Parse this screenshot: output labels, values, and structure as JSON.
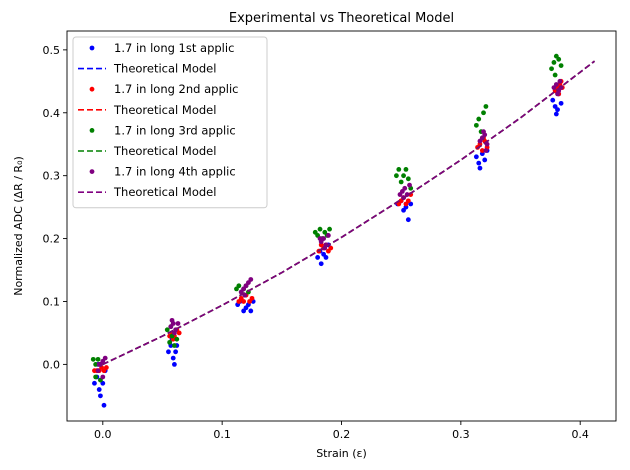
{
  "chart_data": {
    "type": "scatter",
    "title": "Experimental vs Theoretical Model",
    "xlabel": "Strain (ε)",
    "ylabel": "Normalized ADC (ΔR / R₀)",
    "xlim": [
      -0.03,
      0.43
    ],
    "ylim": [
      -0.09,
      0.53
    ],
    "xticks": [
      {
        "value": 0.0,
        "label": "0.0"
      },
      {
        "value": 0.1,
        "label": "0.1"
      },
      {
        "value": 0.2,
        "label": "0.2"
      },
      {
        "value": 0.3,
        "label": "0.3"
      },
      {
        "value": 0.4,
        "label": "0.4"
      }
    ],
    "yticks": [
      {
        "value": 0.0,
        "label": "0.0"
      },
      {
        "value": 0.1,
        "label": "0.1"
      },
      {
        "value": 0.2,
        "label": "0.2"
      },
      {
        "value": 0.3,
        "label": "0.3"
      },
      {
        "value": 0.4,
        "label": "0.4"
      },
      {
        "value": 0.5,
        "label": "0.5"
      }
    ],
    "grid": false,
    "legend_position": "top-left",
    "theory_curve": {
      "x": [
        0.0,
        0.05,
        0.1,
        0.15,
        0.2,
        0.25,
        0.3,
        0.35,
        0.412
      ],
      "y": [
        0.0,
        0.045,
        0.094,
        0.146,
        0.202,
        0.262,
        0.325,
        0.392,
        0.482
      ]
    },
    "series": [
      {
        "name": "1.7 in long 1st applic",
        "color": "#0000ff",
        "points": [
          [
            -0.007,
            -0.03
          ],
          [
            -0.005,
            -0.02
          ],
          [
            -0.003,
            -0.04
          ],
          [
            -0.002,
            -0.05
          ],
          [
            0.0,
            -0.03
          ],
          [
            0.001,
            -0.065
          ],
          [
            0.002,
            -0.01
          ],
          [
            -0.004,
            0.0
          ],
          [
            0.055,
            0.02
          ],
          [
            0.057,
            0.03
          ],
          [
            0.059,
            0.01
          ],
          [
            0.06,
            0.0
          ],
          [
            0.061,
            0.02
          ],
          [
            0.058,
            0.04
          ],
          [
            0.062,
            0.03
          ],
          [
            0.113,
            0.095
          ],
          [
            0.115,
            0.1
          ],
          [
            0.118,
            0.085
          ],
          [
            0.12,
            0.09
          ],
          [
            0.122,
            0.095
          ],
          [
            0.124,
            0.085
          ],
          [
            0.126,
            0.1
          ],
          [
            0.18,
            0.17
          ],
          [
            0.182,
            0.18
          ],
          [
            0.183,
            0.16
          ],
          [
            0.185,
            0.175
          ],
          [
            0.187,
            0.17
          ],
          [
            0.189,
            0.19
          ],
          [
            0.247,
            0.255
          ],
          [
            0.25,
            0.26
          ],
          [
            0.252,
            0.245
          ],
          [
            0.254,
            0.25
          ],
          [
            0.256,
            0.23
          ],
          [
            0.258,
            0.255
          ],
          [
            0.313,
            0.33
          ],
          [
            0.315,
            0.32
          ],
          [
            0.316,
            0.312
          ],
          [
            0.318,
            0.335
          ],
          [
            0.32,
            0.325
          ],
          [
            0.322,
            0.34
          ],
          [
            0.377,
            0.42
          ],
          [
            0.379,
            0.41
          ],
          [
            0.38,
            0.398
          ],
          [
            0.382,
            0.43
          ],
          [
            0.384,
            0.415
          ],
          [
            0.381,
            0.405
          ]
        ]
      },
      {
        "name": "1.7 in long 2nd applic",
        "color": "#ff0000",
        "points": [
          [
            -0.007,
            -0.01
          ],
          [
            -0.005,
            -0.01
          ],
          [
            -0.003,
            -0.01
          ],
          [
            -0.001,
            -0.005
          ],
          [
            0.001,
            -0.01
          ],
          [
            0.003,
            -0.005
          ],
          [
            0.056,
            0.045
          ],
          [
            0.058,
            0.05
          ],
          [
            0.06,
            0.045
          ],
          [
            0.062,
            0.055
          ],
          [
            0.064,
            0.05
          ],
          [
            0.059,
            0.04
          ],
          [
            0.114,
            0.1
          ],
          [
            0.116,
            0.105
          ],
          [
            0.118,
            0.1
          ],
          [
            0.12,
            0.11
          ],
          [
            0.123,
            0.1
          ],
          [
            0.125,
            0.105
          ],
          [
            0.181,
            0.18
          ],
          [
            0.183,
            0.19
          ],
          [
            0.185,
            0.185
          ],
          [
            0.187,
            0.19
          ],
          [
            0.189,
            0.18
          ],
          [
            0.191,
            0.185
          ],
          [
            0.248,
            0.255
          ],
          [
            0.25,
            0.26
          ],
          [
            0.252,
            0.265
          ],
          [
            0.254,
            0.255
          ],
          [
            0.256,
            0.26
          ],
          [
            0.258,
            0.27
          ],
          [
            0.314,
            0.345
          ],
          [
            0.316,
            0.35
          ],
          [
            0.318,
            0.34
          ],
          [
            0.32,
            0.355
          ],
          [
            0.322,
            0.345
          ],
          [
            0.319,
            0.36
          ],
          [
            0.379,
            0.435
          ],
          [
            0.381,
            0.44
          ],
          [
            0.383,
            0.445
          ],
          [
            0.385,
            0.44
          ],
          [
            0.382,
            0.43
          ],
          [
            0.384,
            0.45
          ]
        ]
      },
      {
        "name": "1.7 in long 3rd applic",
        "color": "#008000",
        "points": [
          [
            -0.008,
            0.008
          ],
          [
            -0.006,
            0.0
          ],
          [
            -0.004,
            0.008
          ],
          [
            -0.002,
            0.0
          ],
          [
            -0.006,
            -0.02
          ],
          [
            -0.002,
            -0.025
          ],
          [
            0.054,
            0.055
          ],
          [
            0.056,
            0.035
          ],
          [
            0.058,
            0.045
          ],
          [
            0.06,
            0.03
          ],
          [
            0.057,
            0.06
          ],
          [
            0.062,
            0.04
          ],
          [
            0.112,
            0.12
          ],
          [
            0.114,
            0.125
          ],
          [
            0.116,
            0.115
          ],
          [
            0.118,
            0.12
          ],
          [
            0.12,
            0.125
          ],
          [
            0.122,
            0.115
          ],
          [
            0.178,
            0.21
          ],
          [
            0.18,
            0.205
          ],
          [
            0.182,
            0.215
          ],
          [
            0.184,
            0.2
          ],
          [
            0.186,
            0.21
          ],
          [
            0.188,
            0.205
          ],
          [
            0.19,
            0.215
          ],
          [
            0.246,
            0.3
          ],
          [
            0.248,
            0.31
          ],
          [
            0.25,
            0.29
          ],
          [
            0.252,
            0.3
          ],
          [
            0.254,
            0.31
          ],
          [
            0.256,
            0.295
          ],
          [
            0.258,
            0.28
          ],
          [
            0.313,
            0.38
          ],
          [
            0.315,
            0.39
          ],
          [
            0.317,
            0.37
          ],
          [
            0.319,
            0.4
          ],
          [
            0.321,
            0.41
          ],
          [
            0.318,
            0.36
          ],
          [
            0.376,
            0.47
          ],
          [
            0.378,
            0.48
          ],
          [
            0.38,
            0.49
          ],
          [
            0.382,
            0.485
          ],
          [
            0.384,
            0.475
          ],
          [
            0.379,
            0.46
          ]
        ]
      },
      {
        "name": "1.7 in long 4th applic",
        "color": "#800080",
        "points": [
          [
            -0.004,
            -0.01
          ],
          [
            -0.002,
            0.0
          ],
          [
            0.0,
            0.005
          ],
          [
            0.002,
            0.01
          ],
          [
            0.0,
            -0.02
          ],
          [
            -0.003,
            0.0
          ],
          [
            0.057,
            0.06
          ],
          [
            0.059,
            0.065
          ],
          [
            0.061,
            0.055
          ],
          [
            0.063,
            0.065
          ],
          [
            0.06,
            0.05
          ],
          [
            0.058,
            0.07
          ],
          [
            0.116,
            0.115
          ],
          [
            0.118,
            0.12
          ],
          [
            0.12,
            0.125
          ],
          [
            0.122,
            0.13
          ],
          [
            0.124,
            0.135
          ],
          [
            0.119,
            0.11
          ],
          [
            0.183,
            0.195
          ],
          [
            0.185,
            0.2
          ],
          [
            0.187,
            0.19
          ],
          [
            0.189,
            0.205
          ],
          [
            0.186,
            0.185
          ],
          [
            0.182,
            0.2
          ],
          [
            0.249,
            0.27
          ],
          [
            0.251,
            0.275
          ],
          [
            0.253,
            0.28
          ],
          [
            0.255,
            0.27
          ],
          [
            0.252,
            0.265
          ],
          [
            0.257,
            0.285
          ],
          [
            0.316,
            0.355
          ],
          [
            0.318,
            0.36
          ],
          [
            0.32,
            0.365
          ],
          [
            0.322,
            0.35
          ],
          [
            0.319,
            0.37
          ],
          [
            0.321,
            0.34
          ],
          [
            0.378,
            0.44
          ],
          [
            0.38,
            0.445
          ],
          [
            0.382,
            0.435
          ],
          [
            0.384,
            0.44
          ],
          [
            0.381,
            0.43
          ],
          [
            0.383,
            0.45
          ]
        ]
      }
    ],
    "legend": [
      {
        "label": "1.7 in long 1st applic",
        "kind": "marker",
        "color": "#0000ff"
      },
      {
        "label": "Theoretical Model",
        "kind": "line",
        "color": "#0000ff"
      },
      {
        "label": "1.7 in long 2nd applic",
        "kind": "marker",
        "color": "#ff0000"
      },
      {
        "label": "Theoretical Model",
        "kind": "line",
        "color": "#ff0000"
      },
      {
        "label": "1.7 in long 3rd applic",
        "kind": "marker",
        "color": "#008000"
      },
      {
        "label": "Theoretical Model",
        "kind": "line",
        "color": "#008000"
      },
      {
        "label": "1.7 in long 4th applic",
        "kind": "marker",
        "color": "#800080"
      },
      {
        "label": "Theoretical Model",
        "kind": "line",
        "color": "#800080"
      }
    ]
  }
}
